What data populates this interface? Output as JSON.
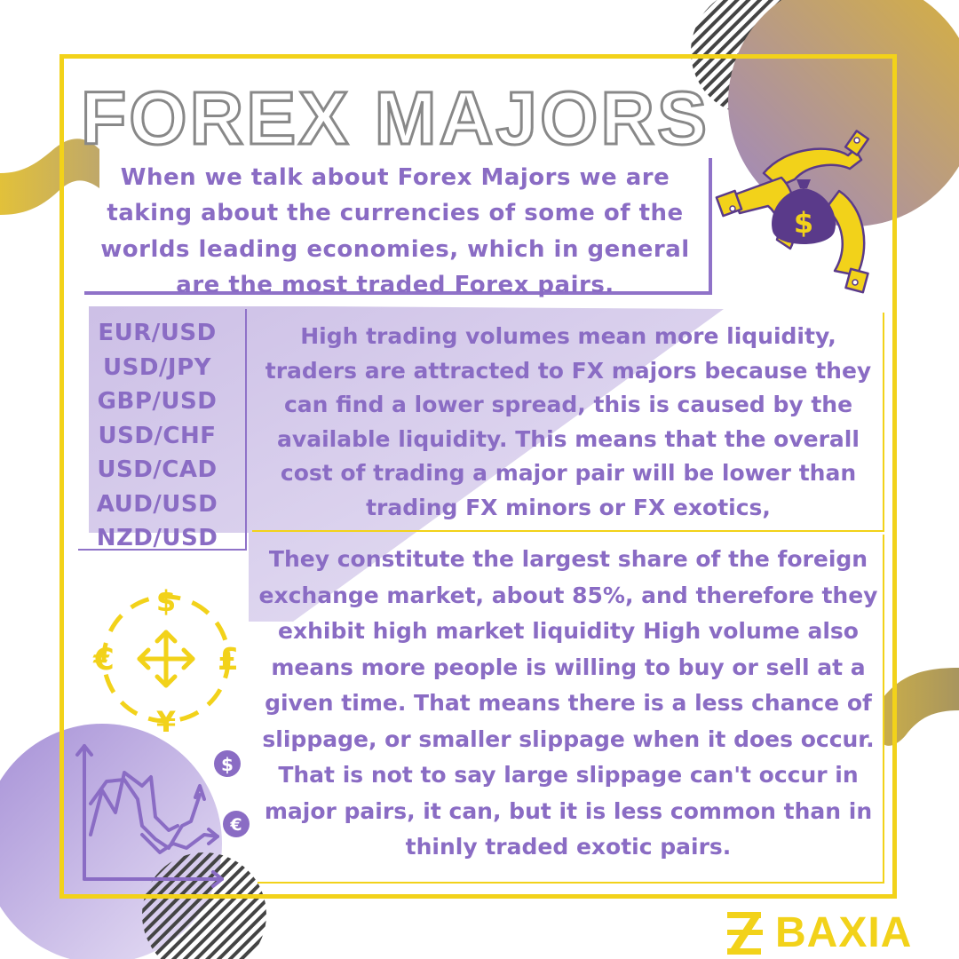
{
  "title": "FOREX MAJORS",
  "intro": "When we talk about Forex Majors we are taking about the currencies of some of the worlds leading economies, which in general are the most traded Forex pairs.",
  "pairs": [
    "EUR/USD",
    "USD/JPY",
    "GBP/USD",
    "USD/CHF",
    "USD/CAD",
    "AUD/USD",
    "NZD/USD"
  ],
  "paragraph_1": "High trading volumes mean more liquidity, traders are attracted to FX majors because they can find a lower spread, this is caused by the available liquidity. This means that the overall cost of trading a major pair will be lower than trading FX minors or FX exotics,",
  "paragraph_2": "They constitute the largest share of the foreign exchange market, about 85%, and therefore they exhibit high market liquidity High volume also means more people is willing to buy or sell at a given time. That means there is a less chance of slippage, or smaller slippage when it does occur. That is not to say large slippage can't occur in major pairs, it can, but it is less common than in thinly traded exotic pairs.",
  "icons": {
    "money_bag": "$",
    "dollar": "$",
    "euro": "€",
    "pound": "£",
    "yen": "¥"
  },
  "logo": {
    "text": "BAXIA"
  },
  "colors": {
    "accent_yellow": "#f2d21a",
    "purple": "#8a6cc4",
    "gradient_gold": "#d8b23a",
    "gradient_purple": "#9d86c6",
    "title_outline": "#888888"
  }
}
